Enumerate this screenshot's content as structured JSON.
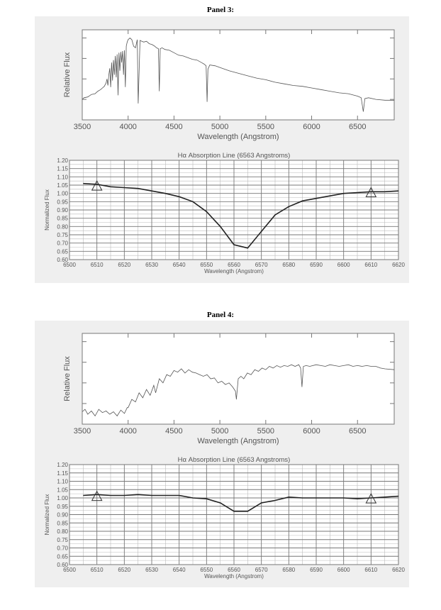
{
  "panels": [
    {
      "title": "Panel 3:",
      "spectrum": {
        "type": "line",
        "xlabel": "Wavelength (Angstrom)",
        "ylabel": "Relative Flux",
        "xlim": [
          3500,
          6900
        ],
        "ylim": [
          0,
          1.1
        ],
        "x_ticks": [
          3500,
          4000,
          4500,
          5000,
          5500,
          6000,
          6500
        ],
        "y_ticks": [
          0.25,
          0.5,
          0.75,
          1.0
        ],
        "show_y_tick_labels": false,
        "grid": false,
        "x": [
          3500,
          3520,
          3560,
          3600,
          3640,
          3670,
          3700,
          3720,
          3740,
          3760,
          3770,
          3780,
          3790,
          3800,
          3810,
          3820,
          3830,
          3840,
          3850,
          3860,
          3870,
          3880,
          3890,
          3900,
          3910,
          3920,
          3930,
          3940,
          3950,
          3960,
          3970,
          3980,
          3990,
          4000,
          4020,
          4040,
          4060,
          4080,
          4100,
          4110,
          4130,
          4150,
          4170,
          4200,
          4230,
          4260,
          4290,
          4310,
          4330,
          4340,
          4350,
          4370,
          4400,
          4450,
          4500,
          4550,
          4600,
          4650,
          4700,
          4750,
          4800,
          4830,
          4850,
          4861,
          4870,
          4890,
          4950,
          5000,
          5100,
          5200,
          5300,
          5400,
          5500,
          5600,
          5700,
          5800,
          5900,
          6000,
          6100,
          6200,
          6300,
          6400,
          6500,
          6540,
          6563,
          6580,
          6620,
          6700,
          6800,
          6900
        ],
        "y": [
          0.25,
          0.27,
          0.28,
          0.31,
          0.32,
          0.35,
          0.37,
          0.39,
          0.41,
          0.45,
          0.5,
          0.42,
          0.55,
          0.63,
          0.4,
          0.7,
          0.48,
          0.73,
          0.55,
          0.78,
          0.52,
          0.8,
          0.3,
          0.82,
          0.6,
          0.83,
          0.7,
          0.84,
          0.55,
          0.85,
          0.4,
          0.9,
          0.95,
          0.98,
          1.0,
          0.98,
          0.9,
          0.88,
          0.98,
          0.2,
          0.97,
          0.96,
          0.95,
          0.96,
          0.93,
          0.92,
          0.9,
          0.88,
          0.87,
          0.35,
          0.87,
          0.88,
          0.86,
          0.85,
          0.82,
          0.79,
          0.78,
          0.76,
          0.74,
          0.73,
          0.7,
          0.68,
          0.66,
          0.22,
          0.62,
          0.67,
          0.66,
          0.64,
          0.6,
          0.57,
          0.54,
          0.51,
          0.49,
          0.46,
          0.44,
          0.42,
          0.41,
          0.39,
          0.37,
          0.35,
          0.33,
          0.32,
          0.29,
          0.27,
          0.1,
          0.26,
          0.27,
          0.25,
          0.24,
          0.24
        ]
      },
      "halpha": {
        "type": "line",
        "title": "Hα Absorption Line (6563 Angstroms)",
        "xlabel": "Wavelength (Angstrom)",
        "ylabel": "Normalized Flux",
        "xlim": [
          6500,
          6620
        ],
        "ylim": [
          0.6,
          1.2
        ],
        "x_ticks": [
          6500,
          6510,
          6520,
          6530,
          6540,
          6550,
          6560,
          6570,
          6580,
          6590,
          6600,
          6610,
          6620
        ],
        "y_ticks": [
          "0.60",
          "0.65",
          "0.70",
          "0.75",
          "0.80",
          "0.85",
          "0.90",
          "0.95",
          "1.00",
          "1.05",
          "1.10",
          "1.15",
          "1.20"
        ],
        "grid": true,
        "x": [
          6505,
          6510,
          6515,
          6520,
          6525,
          6530,
          6535,
          6540,
          6545,
          6550,
          6555,
          6560,
          6565,
          6570,
          6575,
          6580,
          6585,
          6590,
          6595,
          6600,
          6605,
          6610,
          6615,
          6620
        ],
        "y": [
          1.06,
          1.055,
          1.04,
          1.035,
          1.03,
          1.015,
          1.0,
          0.98,
          0.95,
          0.89,
          0.8,
          0.69,
          0.67,
          0.77,
          0.87,
          0.92,
          0.955,
          0.97,
          0.985,
          1.0,
          1.005,
          1.01,
          1.01,
          1.015
        ],
        "markers": [
          {
            "x": 6510,
            "y": 1.045
          },
          {
            "x": 6610,
            "y": 1.005
          }
        ]
      }
    },
    {
      "title": "Panel 4:",
      "spectrum": {
        "type": "line",
        "xlabel": "Wavelength (Angstrom)",
        "ylabel": "Relative Flux",
        "xlim": [
          3500,
          6900
        ],
        "ylim": [
          0,
          1.1
        ],
        "x_ticks": [
          3500,
          4000,
          4500,
          5000,
          5500,
          6000,
          6500
        ],
        "y_ticks": [
          0.25,
          0.5,
          0.75,
          1.0
        ],
        "show_y_tick_labels": false,
        "grid": false,
        "x": [
          3500,
          3530,
          3560,
          3600,
          3640,
          3680,
          3720,
          3760,
          3800,
          3840,
          3880,
          3920,
          3960,
          3990,
          4000,
          4040,
          4080,
          4120,
          4160,
          4200,
          4240,
          4280,
          4300,
          4340,
          4380,
          4420,
          4460,
          4500,
          4540,
          4580,
          4620,
          4660,
          4700,
          4740,
          4780,
          4820,
          4860,
          4900,
          4940,
          4980,
          5020,
          5060,
          5100,
          5140,
          5170,
          5180,
          5200,
          5230,
          5260,
          5300,
          5340,
          5380,
          5420,
          5460,
          5500,
          5540,
          5580,
          5620,
          5660,
          5700,
          5740,
          5780,
          5820,
          5860,
          5880,
          5895,
          5910,
          5940,
          5980,
          6050,
          6100,
          6150,
          6200,
          6250,
          6300,
          6350,
          6400,
          6450,
          6500,
          6550,
          6600,
          6650,
          6700,
          6750,
          6800,
          6900
        ],
        "y": [
          0.15,
          0.18,
          0.12,
          0.16,
          0.1,
          0.18,
          0.14,
          0.16,
          0.12,
          0.15,
          0.1,
          0.17,
          0.13,
          0.2,
          0.2,
          0.3,
          0.27,
          0.38,
          0.32,
          0.42,
          0.35,
          0.47,
          0.38,
          0.55,
          0.5,
          0.6,
          0.58,
          0.65,
          0.63,
          0.67,
          0.62,
          0.66,
          0.63,
          0.62,
          0.6,
          0.58,
          0.6,
          0.55,
          0.56,
          0.5,
          0.52,
          0.48,
          0.5,
          0.45,
          0.4,
          0.3,
          0.55,
          0.58,
          0.55,
          0.62,
          0.6,
          0.66,
          0.64,
          0.68,
          0.66,
          0.7,
          0.68,
          0.71,
          0.69,
          0.71,
          0.7,
          0.72,
          0.7,
          0.72,
          0.68,
          0.45,
          0.7,
          0.71,
          0.7,
          0.72,
          0.71,
          0.7,
          0.72,
          0.71,
          0.7,
          0.71,
          0.72,
          0.7,
          0.71,
          0.7,
          0.71,
          0.7,
          0.7,
          0.68,
          0.67,
          0.66
        ]
      },
      "halpha": {
        "type": "line",
        "title": "Hα Absorption Line (6563 Angstroms)",
        "xlabel": "Wavelength (Angstrom)",
        "ylabel": "Normalized Flux",
        "xlim": [
          6500,
          6620
        ],
        "ylim": [
          0.6,
          1.2
        ],
        "x_ticks": [
          6500,
          6510,
          6520,
          6530,
          6540,
          6550,
          6560,
          6570,
          6580,
          6590,
          6600,
          6610,
          6620
        ],
        "y_ticks": [
          "0.60",
          "0.65",
          "0.70",
          "0.75",
          "0.80",
          "0.85",
          "0.90",
          "0.95",
          "1.00",
          "1.05",
          "1.10",
          "1.15",
          "1.20"
        ],
        "grid": true,
        "x": [
          6505,
          6510,
          6515,
          6520,
          6525,
          6530,
          6535,
          6540,
          6545,
          6550,
          6555,
          6560,
          6565,
          6570,
          6575,
          6580,
          6585,
          6590,
          6595,
          6600,
          6605,
          6610,
          6615,
          6620
        ],
        "y": [
          1.015,
          1.02,
          1.015,
          1.015,
          1.02,
          1.015,
          1.015,
          1.015,
          1.0,
          0.995,
          0.97,
          0.92,
          0.92,
          0.97,
          0.985,
          1.005,
          1.0,
          1.0,
          1.0,
          1.0,
          0.995,
          1.0,
          1.005,
          1.01
        ],
        "markers": [
          {
            "x": 6510,
            "y": 1.01
          },
          {
            "x": 6610,
            "y": 0.995
          }
        ]
      }
    }
  ]
}
